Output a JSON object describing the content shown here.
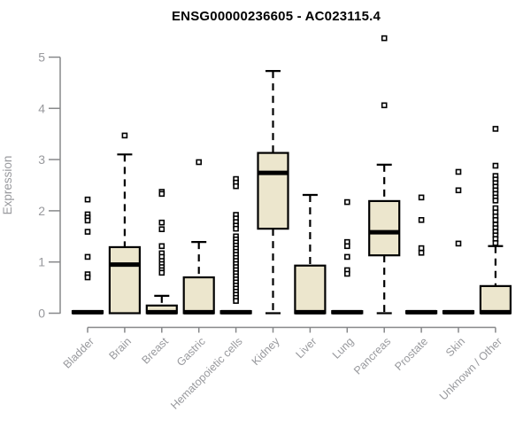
{
  "chart_data": {
    "type": "boxplot",
    "title": "ENSG00000236605 - AC023115.4",
    "xlabel": "",
    "ylabel": "Expression",
    "ylim": [
      0,
      5
    ],
    "yticks": [
      0,
      1,
      2,
      3,
      4,
      5
    ],
    "grid": false,
    "legend": "none",
    "colors": {
      "box_fill": "#ece6cd",
      "box_border": "#000000",
      "median": "#000000",
      "whisker": "#000000",
      "outlier_fill": "#ffffff",
      "axis_line": "#87888a",
      "axis_text": "#98999d",
      "title_text": "#000000",
      "background": "#ffffff"
    },
    "categories": [
      "Bladder",
      "Brain",
      "Breast",
      "Gastric",
      "Hematopoietic cells",
      "Kidney",
      "Liver",
      "Lung",
      "Pancreas",
      "Prostate",
      "Skin",
      "Unknown / Other"
    ],
    "series": [
      {
        "category": "Bladder",
        "q1": 0,
        "median": 0.02,
        "q3": 0.04,
        "whisker_low": 0,
        "whisker_high": 0.04,
        "outliers": [
          2.22,
          1.93,
          1.87,
          1.81,
          1.59,
          1.1,
          0.76,
          0.7
        ]
      },
      {
        "category": "Brain",
        "q1": 0,
        "median": 0.95,
        "q3": 1.29,
        "whisker_low": 0,
        "whisker_high": 3.1,
        "outliers": [
          3.47
        ]
      },
      {
        "category": "Breast",
        "q1": 0,
        "median": 0.02,
        "q3": 0.15,
        "whisker_low": 0,
        "whisker_high": 0.34,
        "outliers": [
          2.37,
          2.33,
          1.77,
          1.64,
          1.31,
          1.17,
          1.1,
          1.02,
          0.96,
          0.9,
          0.84,
          0.79
        ]
      },
      {
        "category": "Gastric",
        "q1": 0,
        "median": 0.02,
        "q3": 0.7,
        "whisker_low": 0,
        "whisker_high": 1.39,
        "outliers": [
          2.95
        ]
      },
      {
        "category": "Hematopoietic cells",
        "q1": 0,
        "median": 0.02,
        "q3": 0.04,
        "whisker_low": 0,
        "whisker_high": 0.04,
        "outliers": [
          2.62,
          2.55,
          2.48,
          1.92,
          1.85,
          1.78,
          1.71,
          1.65,
          1.5,
          1.44,
          1.38,
          1.32,
          1.26,
          1.2,
          1.14,
          1.08,
          1.02,
          0.96,
          0.9,
          0.84,
          0.78,
          0.72,
          0.66,
          0.6,
          0.54,
          0.48,
          0.42,
          0.36,
          0.3,
          0.24
        ]
      },
      {
        "category": "Kidney",
        "q1": 1.65,
        "median": 2.74,
        "q3": 3.13,
        "whisker_low": 0,
        "whisker_high": 4.73,
        "outliers": []
      },
      {
        "category": "Liver",
        "q1": 0,
        "median": 0.02,
        "q3": 0.93,
        "whisker_low": 0,
        "whisker_high": 2.31,
        "outliers": []
      },
      {
        "category": "Lung",
        "q1": 0,
        "median": 0.02,
        "q3": 0.04,
        "whisker_low": 0,
        "whisker_high": 0.04,
        "outliers": [
          2.17,
          1.39,
          1.31,
          1.1,
          0.84,
          0.77
        ]
      },
      {
        "category": "Pancreas",
        "q1": 1.13,
        "median": 1.58,
        "q3": 2.19,
        "whisker_low": 0,
        "whisker_high": 2.9,
        "outliers": [
          5.37,
          4.06
        ]
      },
      {
        "category": "Prostate",
        "q1": 0,
        "median": 0.02,
        "q3": 0.04,
        "whisker_low": 0,
        "whisker_high": 0.04,
        "outliers": [
          2.26,
          1.82,
          1.27,
          1.18
        ]
      },
      {
        "category": "Skin",
        "q1": 0,
        "median": 0.02,
        "q3": 0.04,
        "whisker_low": 0,
        "whisker_high": 0.04,
        "outliers": [
          2.76,
          2.4,
          1.36
        ]
      },
      {
        "category": "Unknown / Other",
        "q1": 0,
        "median": 0.02,
        "q3": 0.53,
        "whisker_low": 0,
        "whisker_high": 1.31,
        "outliers": [
          3.6,
          2.88,
          2.68,
          2.61,
          2.54,
          2.47,
          2.4,
          2.33,
          2.26,
          2.2,
          2.05,
          1.97,
          1.89,
          1.82,
          1.73,
          1.66,
          1.59,
          1.52,
          1.45,
          1.37
        ]
      }
    ]
  }
}
